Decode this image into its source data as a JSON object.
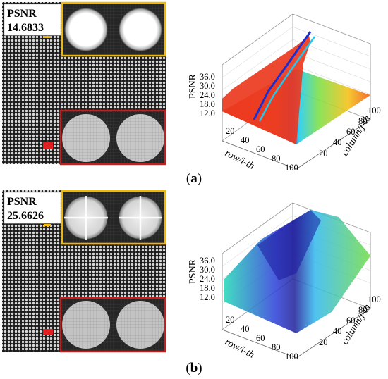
{
  "panels": [
    {
      "id": "a",
      "caption_open": "(",
      "caption_letter": "a",
      "caption_close": ")",
      "psnr_label": "PSNR",
      "psnr_value": "14.6833",
      "marker_small_color": "#f5b800",
      "marker_roi_color": "#e02020",
      "inset_top_border": "#f2b705",
      "inset_bottom_border": "#c41e1e",
      "plot": {
        "zlabel": "PSNR",
        "xlabel": "row/i-th",
        "ylabel": "column/j-th",
        "zticks": [
          "36.0",
          "30.0",
          "24.0",
          "18.0",
          "12.0"
        ],
        "xticks": [
          "20",
          "40",
          "60",
          "80",
          "100"
        ],
        "yticks": [
          "20",
          "40",
          "60",
          "80",
          "100"
        ]
      }
    },
    {
      "id": "b",
      "caption_open": "(",
      "caption_letter": "b",
      "caption_close": ")",
      "psnr_label": "PSNR",
      "psnr_value": "25.6626",
      "marker_small_color": "#f5b800",
      "marker_roi_color": "#e02020",
      "inset_top_border": "#f2b705",
      "inset_bottom_border": "#c41e1e",
      "plot": {
        "zlabel": "PSNR",
        "xlabel": "row/i-th",
        "ylabel": "column/j-th",
        "zticks": [
          "36.0",
          "30.0",
          "24.0",
          "18.0",
          "12.0"
        ],
        "xticks": [
          "20",
          "40",
          "60",
          "80",
          "100"
        ],
        "yticks": [
          "20",
          "40",
          "60",
          "80",
          "100"
        ]
      }
    }
  ]
}
